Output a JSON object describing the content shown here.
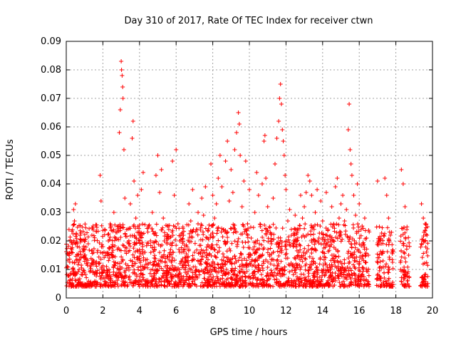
{
  "chart_data": {
    "type": "scatter",
    "title": "Day 310 of 2017, Rate Of TEC Index for receiver ctwn",
    "xlabel": "GPS time / hours",
    "ylabel": "ROTI / TECUs",
    "xlim": [
      0,
      20
    ],
    "ylim": [
      0,
      0.09
    ],
    "x_ticks": [
      "0",
      "2",
      "4",
      "6",
      "8",
      "10",
      "12",
      "14",
      "16",
      "18",
      "20"
    ],
    "y_ticks": [
      "0",
      "0.01",
      "0.02",
      "0.03",
      "0.04",
      "0.05",
      "0.06",
      "0.07",
      "0.08",
      "0.09"
    ],
    "grid": true,
    "marker": "plus",
    "series_color": "#ff0000",
    "data_gaps_hours": [
      [
        16.55,
        16.95
      ],
      [
        17.85,
        18.25
      ],
      [
        18.75,
        19.35
      ]
    ],
    "series": [
      {
        "points": [
          [
            0.05,
            0.011
          ],
          [
            0.15,
            0.024
          ],
          [
            0.2,
            0.008
          ],
          [
            0.3,
            0.017
          ],
          [
            0.4,
            0.031
          ],
          [
            0.45,
            0.027
          ],
          [
            0.5,
            0.033
          ],
          [
            0.6,
            0.018
          ],
          [
            0.7,
            0.01
          ],
          [
            0.8,
            0.014
          ],
          [
            0.9,
            0.009
          ],
          [
            1.0,
            0.015
          ],
          [
            1.1,
            0.012
          ],
          [
            1.2,
            0.019
          ],
          [
            1.3,
            0.011
          ],
          [
            1.4,
            0.022
          ],
          [
            1.5,
            0.013
          ],
          [
            1.6,
            0.009
          ],
          [
            1.7,
            0.016
          ],
          [
            1.8,
            0.012
          ],
          [
            1.85,
            0.043
          ],
          [
            1.9,
            0.034
          ],
          [
            2.0,
            0.018
          ],
          [
            2.1,
            0.024
          ],
          [
            2.2,
            0.011
          ],
          [
            2.3,
            0.02
          ],
          [
            2.4,
            0.026
          ],
          [
            2.5,
            0.015
          ],
          [
            2.6,
            0.03
          ],
          [
            2.7,
            0.021
          ],
          [
            2.8,
            0.017
          ],
          [
            2.9,
            0.058
          ],
          [
            2.95,
            0.066
          ],
          [
            3.0,
            0.083
          ],
          [
            3.02,
            0.08
          ],
          [
            3.05,
            0.078
          ],
          [
            3.08,
            0.074
          ],
          [
            3.1,
            0.07
          ],
          [
            3.15,
            0.052
          ],
          [
            3.2,
            0.035
          ],
          [
            3.3,
            0.024
          ],
          [
            3.4,
            0.019
          ],
          [
            3.5,
            0.033
          ],
          [
            3.6,
            0.056
          ],
          [
            3.65,
            0.062
          ],
          [
            3.7,
            0.041
          ],
          [
            3.8,
            0.028
          ],
          [
            3.9,
            0.036
          ],
          [
            4.0,
            0.022
          ],
          [
            4.1,
            0.038
          ],
          [
            4.2,
            0.044
          ],
          [
            4.3,
            0.016
          ],
          [
            4.4,
            0.005
          ],
          [
            4.5,
            0.012
          ],
          [
            4.6,
            0.02
          ],
          [
            4.7,
            0.03
          ],
          [
            4.8,
            0.014
          ],
          [
            4.9,
            0.043
          ],
          [
            5.0,
            0.05
          ],
          [
            5.1,
            0.037
          ],
          [
            5.2,
            0.045
          ],
          [
            5.3,
            0.028
          ],
          [
            5.4,
            0.011
          ],
          [
            5.5,
            0.019
          ],
          [
            5.6,
            0.024
          ],
          [
            5.7,
            0.017
          ],
          [
            5.8,
            0.048
          ],
          [
            5.9,
            0.036
          ],
          [
            6.0,
            0.052
          ],
          [
            6.1,
            0.026
          ],
          [
            6.2,
            0.02
          ],
          [
            6.3,
            0.013
          ],
          [
            6.4,
            0.022
          ],
          [
            6.5,
            0.009
          ],
          [
            6.6,
            0.018
          ],
          [
            6.7,
            0.033
          ],
          [
            6.8,
            0.027
          ],
          [
            6.9,
            0.038
          ],
          [
            7.0,
            0.016
          ],
          [
            7.1,
            0.024
          ],
          [
            7.2,
            0.03
          ],
          [
            7.3,
            0.012
          ],
          [
            7.4,
            0.035
          ],
          [
            7.5,
            0.029
          ],
          [
            7.6,
            0.039
          ],
          [
            7.7,
            0.021
          ],
          [
            7.8,
            0.018
          ],
          [
            7.9,
            0.047
          ],
          [
            8.0,
            0.036
          ],
          [
            8.1,
            0.028
          ],
          [
            8.2,
            0.033
          ],
          [
            8.3,
            0.042
          ],
          [
            8.4,
            0.05
          ],
          [
            8.5,
            0.039
          ],
          [
            8.6,
            0.024
          ],
          [
            8.7,
            0.048
          ],
          [
            8.8,
            0.055
          ],
          [
            8.9,
            0.034
          ],
          [
            9.0,
            0.045
          ],
          [
            9.1,
            0.037
          ],
          [
            9.2,
            0.052
          ],
          [
            9.3,
            0.058
          ],
          [
            9.4,
            0.065
          ],
          [
            9.45,
            0.061
          ],
          [
            9.5,
            0.05
          ],
          [
            9.6,
            0.032
          ],
          [
            9.7,
            0.041
          ],
          [
            9.8,
            0.048
          ],
          [
            9.9,
            0.026
          ],
          [
            10.0,
            0.038
          ],
          [
            10.1,
            0.021
          ],
          [
            10.2,
            0.017
          ],
          [
            10.3,
            0.03
          ],
          [
            10.4,
            0.044
          ],
          [
            10.5,
            0.036
          ],
          [
            10.6,
            0.025
          ],
          [
            10.7,
            0.04
          ],
          [
            10.8,
            0.055
          ],
          [
            10.85,
            0.057
          ],
          [
            10.9,
            0.042
          ],
          [
            11.0,
            0.032
          ],
          [
            11.1,
            0.025
          ],
          [
            11.2,
            0.019
          ],
          [
            11.3,
            0.035
          ],
          [
            11.4,
            0.047
          ],
          [
            11.5,
            0.056
          ],
          [
            11.6,
            0.062
          ],
          [
            11.65,
            0.07
          ],
          [
            11.7,
            0.075
          ],
          [
            11.75,
            0.068
          ],
          [
            11.8,
            0.059
          ],
          [
            11.85,
            0.055
          ],
          [
            11.9,
            0.05
          ],
          [
            11.95,
            0.043
          ],
          [
            12.0,
            0.038
          ],
          [
            12.1,
            0.027
          ],
          [
            12.2,
            0.031
          ],
          [
            12.3,
            0.022
          ],
          [
            12.4,
            0.018
          ],
          [
            12.5,
            0.029
          ],
          [
            12.6,
            0.024
          ],
          [
            12.7,
            0.016
          ],
          [
            12.8,
            0.036
          ],
          [
            12.9,
            0.028
          ],
          [
            13.0,
            0.032
          ],
          [
            13.1,
            0.037
          ],
          [
            13.2,
            0.043
          ],
          [
            13.3,
            0.041
          ],
          [
            13.4,
            0.036
          ],
          [
            13.5,
            0.025
          ],
          [
            13.6,
            0.03
          ],
          [
            13.7,
            0.038
          ],
          [
            13.8,
            0.021
          ],
          [
            13.9,
            0.034
          ],
          [
            14.0,
            0.027
          ],
          [
            14.1,
            0.02
          ],
          [
            14.2,
            0.037
          ],
          [
            14.3,
            0.024
          ],
          [
            14.4,
            0.018
          ],
          [
            14.5,
            0.032
          ],
          [
            14.6,
            0.026
          ],
          [
            14.7,
            0.039
          ],
          [
            14.8,
            0.042
          ],
          [
            14.9,
            0.028
          ],
          [
            15.0,
            0.033
          ],
          [
            15.1,
            0.036
          ],
          [
            15.2,
            0.027
          ],
          [
            15.3,
            0.031
          ],
          [
            15.4,
            0.059
          ],
          [
            15.45,
            0.068
          ],
          [
            15.5,
            0.052
          ],
          [
            15.55,
            0.047
          ],
          [
            15.6,
            0.043
          ],
          [
            15.7,
            0.036
          ],
          [
            15.8,
            0.029
          ],
          [
            15.9,
            0.04
          ],
          [
            16.0,
            0.033
          ],
          [
            16.1,
            0.024
          ],
          [
            16.2,
            0.019
          ],
          [
            16.3,
            0.028
          ],
          [
            16.4,
            0.021
          ],
          [
            16.5,
            0.015
          ],
          [
            17.0,
            0.041
          ],
          [
            17.1,
            0.025
          ],
          [
            17.2,
            0.019
          ],
          [
            17.3,
            0.013
          ],
          [
            17.4,
            0.042
          ],
          [
            17.5,
            0.036
          ],
          [
            17.6,
            0.028
          ],
          [
            17.7,
            0.022
          ],
          [
            17.8,
            0.016
          ],
          [
            18.3,
            0.045
          ],
          [
            18.4,
            0.04
          ],
          [
            18.5,
            0.032
          ],
          [
            18.6,
            0.024
          ],
          [
            18.7,
            0.015
          ],
          [
            19.4,
            0.033
          ],
          [
            19.5,
            0.028
          ],
          [
            19.6,
            0.026
          ],
          [
            19.7,
            0.022
          ]
        ]
      }
    ]
  }
}
